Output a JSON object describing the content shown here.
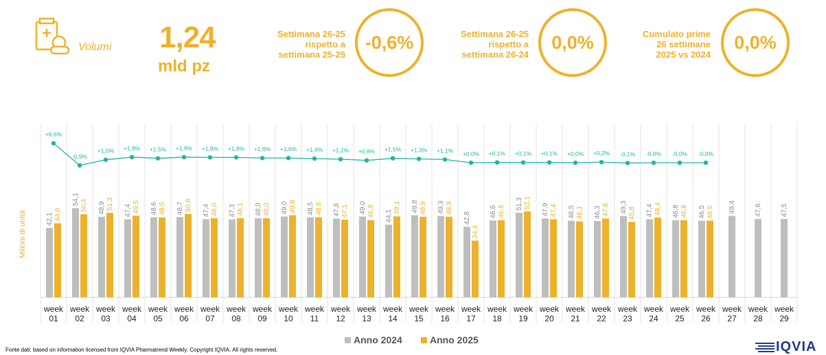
{
  "header": {
    "category_label": "Volumi",
    "big_value": "1,24",
    "big_unit": "mld pz",
    "kpis": [
      {
        "label_lines": [
          "Settimana 26-25",
          "rispetto a",
          "settimana 25-25"
        ],
        "value": "-0,6%"
      },
      {
        "label_lines": [
          "Settimana 26-25",
          "rispetto a",
          "settimana 26-24"
        ],
        "value": "0,0%"
      },
      {
        "label_lines": [
          "Cumulato prime",
          "26 settimane",
          "2025 vs 2024"
        ],
        "value": "0,0%"
      }
    ]
  },
  "colors": {
    "accent": "#EDB22B",
    "bar_2024": "#BEBEBE",
    "bar_2025": "#EDB22B",
    "line": "#1FB5A5",
    "logo": "#1F3A8A"
  },
  "chart_data": {
    "type": "bar",
    "ylabel": "Milioni di unità",
    "categories": [
      "week 01",
      "week 02",
      "week 03",
      "week 04",
      "week 05",
      "week 06",
      "week 07",
      "week 08",
      "week 09",
      "week 10",
      "week 11",
      "week 12",
      "week 13",
      "week 14",
      "week 15",
      "week 16",
      "week 17",
      "week 18",
      "week 19",
      "week 20",
      "week 21",
      "week 22",
      "week 23",
      "week 24",
      "week 25",
      "week 26",
      "week 27",
      "week 28",
      "week 29"
    ],
    "series": [
      {
        "name": "Anno 2024",
        "values": [
          42.1,
          54.1,
          48.9,
          47.4,
          48.6,
          48.7,
          47.4,
          47.3,
          48.0,
          49.0,
          48.5,
          47.8,
          49.0,
          44.1,
          49.8,
          49.3,
          42.8,
          46.6,
          51.3,
          47.9,
          46.5,
          46.3,
          49.3,
          47.4,
          46.8,
          46.5,
          49.4,
          47.6,
          47.5
        ],
        "labels": [
          "42,1",
          "54,1",
          "48,9",
          "47,4",
          "48,6",
          "48,7",
          "47,4",
          "47,3",
          "48,0",
          "49,0",
          "48,5",
          "47,8",
          "49,0",
          "44,1",
          "49,8",
          "49,3",
          "42,8",
          "46,6",
          "51,3",
          "47,9",
          "46,5",
          "46,3",
          "49,3",
          "47,4",
          "46,8",
          "46,5",
          "49,4",
          "47,6",
          "47,5"
        ]
      },
      {
        "name": "Anno 2025",
        "values": [
          44.9,
          50.4,
          51.3,
          49.5,
          48.5,
          50.6,
          48.0,
          48.1,
          48.0,
          49.8,
          48.6,
          47.1,
          46.9,
          49.1,
          48.9,
          48.9,
          34.4,
          46.8,
          52.1,
          47.4,
          46.1,
          47.8,
          45.8,
          48.4,
          46.8,
          46.5,
          null,
          null,
          null
        ],
        "labels": [
          "44,9",
          "50,4",
          "51,3",
          "49,5",
          "48,5",
          "50,6",
          "48,0",
          "48,1",
          "48,0",
          "49,8",
          "48,6",
          "47,1",
          "46,9",
          "49,1",
          "48,9",
          "48,9",
          "34,4",
          "46,8",
          "52,1",
          "47,4",
          "46,1",
          "47,8",
          "45,8",
          "48,4",
          "46,8",
          "46,5",
          "",
          "",
          ""
        ]
      }
    ],
    "growth": {
      "values": [
        6.6,
        -0.9,
        1.0,
        1.9,
        1.5,
        1.9,
        1.8,
        1.8,
        1.6,
        1.6,
        1.4,
        1.2,
        0.8,
        1.5,
        1.3,
        1.1,
        0.0,
        0.1,
        0.1,
        0.1,
        0.0,
        0.2,
        -0.1,
        -0.0,
        -0.0,
        -0.0
      ],
      "labels": [
        "+6,6%",
        "-0,9%",
        "+1,0%",
        "+1,9%",
        "+1,5%",
        "+1,9%",
        "+1,8%",
        "+1,8%",
        "+1,6%",
        "+1,6%",
        "+1,4%",
        "+1,2%",
        "+0,8%",
        "+1,5%",
        "+1,3%",
        "+1,1%",
        "+0,0%",
        "+0,1%",
        "+0,1%",
        "+0,1%",
        "+0,0%",
        "+0,2%",
        "-0,1%",
        "-0,0%",
        "-0,0%",
        "-0,0%"
      ]
    },
    "legend": [
      "Anno 2024",
      "Anno 2025"
    ],
    "legend_position": "bottom",
    "grid": "vertical separators"
  },
  "footer": {
    "source": "Fonte dati: based on information licensed from IQVIA Pharmatrend Weekly. Copyright IQVIA. All rights reserved.",
    "logo_text": "IQVIA"
  }
}
